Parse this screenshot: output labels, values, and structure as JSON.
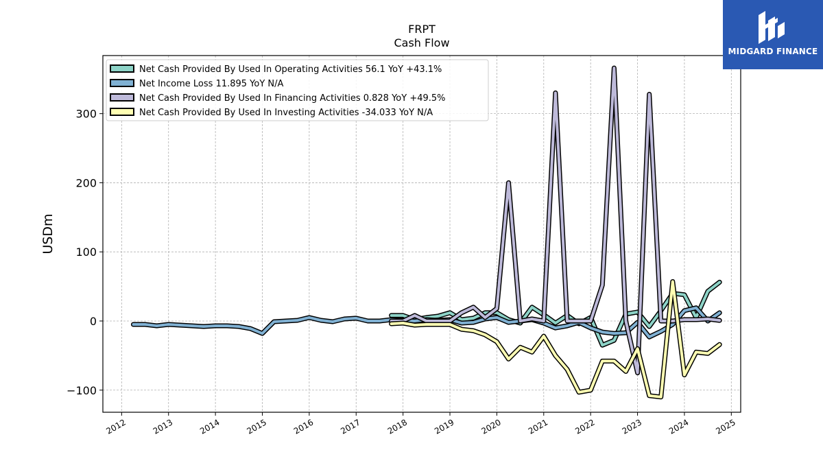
{
  "chart_data": {
    "type": "line",
    "title": "FRPT",
    "subtitle": "Cash Flow",
    "xlabel": "",
    "ylabel": "USDm",
    "xlim": [
      2011.6,
      2025.2
    ],
    "ylim": [
      -132,
      384
    ],
    "x_ticks": [
      "2012",
      "2013",
      "2014",
      "2015",
      "2016",
      "2017",
      "2018",
      "2019",
      "2020",
      "2021",
      "2022",
      "2023",
      "2024",
      "2025"
    ],
    "y_ticks": [
      -100,
      0,
      100,
      200,
      300
    ],
    "y_tick_labels": [
      "−100",
      "0",
      "100",
      "200",
      "300"
    ],
    "grid": true,
    "legend_position": "top-left",
    "series": [
      {
        "name": "Net Cash Provided By Used In Operating Activities",
        "legend_label": "Net Cash Provided By Used In Operating Activities  56.1 YoY +43.1%",
        "color": "#8dd3c7",
        "points": [
          [
            2017.75,
            8
          ],
          [
            2018.0,
            8
          ],
          [
            2018.25,
            2
          ],
          [
            2018.5,
            5
          ],
          [
            2018.75,
            7
          ],
          [
            2019.0,
            12
          ],
          [
            2019.25,
            2
          ],
          [
            2019.5,
            4
          ],
          [
            2019.75,
            12
          ],
          [
            2020.0,
            12
          ],
          [
            2020.25,
            2
          ],
          [
            2020.5,
            -3
          ],
          [
            2020.75,
            20
          ],
          [
            2021.0,
            9
          ],
          [
            2021.25,
            -3
          ],
          [
            2021.5,
            8
          ],
          [
            2021.75,
            -4
          ],
          [
            2022.0,
            5
          ],
          [
            2022.25,
            -35
          ],
          [
            2022.5,
            -28
          ],
          [
            2022.75,
            10
          ],
          [
            2023.0,
            13
          ],
          [
            2023.25,
            -8
          ],
          [
            2023.5,
            15
          ],
          [
            2023.75,
            40
          ],
          [
            2024.0,
            38
          ],
          [
            2024.25,
            5
          ],
          [
            2024.5,
            43
          ],
          [
            2024.75,
            56.1
          ]
        ]
      },
      {
        "name": "Net Income Loss",
        "legend_label": "Net Income Loss  11.895 YoY N/A",
        "color": "#80b1d3",
        "points": [
          [
            2012.25,
            -5
          ],
          [
            2012.5,
            -5
          ],
          [
            2012.75,
            -7
          ],
          [
            2013.0,
            -5
          ],
          [
            2013.25,
            -6
          ],
          [
            2013.5,
            -7
          ],
          [
            2013.75,
            -8
          ],
          [
            2014.0,
            -7
          ],
          [
            2014.25,
            -7
          ],
          [
            2014.5,
            -8
          ],
          [
            2014.75,
            -11
          ],
          [
            2015.0,
            -18
          ],
          [
            2015.25,
            -1
          ],
          [
            2015.5,
            0
          ],
          [
            2015.75,
            1
          ],
          [
            2016.0,
            5
          ],
          [
            2016.25,
            1
          ],
          [
            2016.5,
            -1
          ],
          [
            2016.75,
            3
          ],
          [
            2017.0,
            4
          ],
          [
            2017.25,
            0
          ],
          [
            2017.5,
            0
          ],
          [
            2017.75,
            2
          ],
          [
            2018.0,
            1
          ],
          [
            2018.25,
            0
          ],
          [
            2018.5,
            2
          ],
          [
            2018.75,
            1
          ],
          [
            2019.0,
            2
          ],
          [
            2019.25,
            -3
          ],
          [
            2019.5,
            -2
          ],
          [
            2019.75,
            3
          ],
          [
            2020.0,
            5
          ],
          [
            2020.25,
            -2
          ],
          [
            2020.5,
            0
          ],
          [
            2020.75,
            2
          ],
          [
            2021.0,
            -3
          ],
          [
            2021.25,
            -10
          ],
          [
            2021.5,
            -7
          ],
          [
            2021.75,
            -2
          ],
          [
            2022.0,
            -10
          ],
          [
            2022.25,
            -16
          ],
          [
            2022.5,
            -18
          ],
          [
            2022.75,
            -17
          ],
          [
            2023.0,
            -2
          ],
          [
            2023.25,
            -23
          ],
          [
            2023.5,
            -15
          ],
          [
            2023.75,
            -5
          ],
          [
            2024.0,
            15
          ],
          [
            2024.25,
            19
          ],
          [
            2024.5,
            0
          ],
          [
            2024.75,
            11.895
          ]
        ]
      },
      {
        "name": "Net Cash Provided By Used In Financing Activities",
        "legend_label": "Net Cash Provided By Used In Financing Activities  0.828 YoY +49.5%",
        "color": "#bebada",
        "points": [
          [
            2017.75,
            0
          ],
          [
            2018.0,
            0
          ],
          [
            2018.25,
            8
          ],
          [
            2018.5,
            0
          ],
          [
            2018.75,
            0
          ],
          [
            2019.0,
            0
          ],
          [
            2019.25,
            12
          ],
          [
            2019.5,
            20
          ],
          [
            2019.75,
            5
          ],
          [
            2020.0,
            18
          ],
          [
            2020.25,
            200
          ],
          [
            2020.5,
            0
          ],
          [
            2020.75,
            3
          ],
          [
            2021.0,
            0
          ],
          [
            2021.25,
            330
          ],
          [
            2021.5,
            0
          ],
          [
            2021.75,
            0
          ],
          [
            2022.0,
            0
          ],
          [
            2022.25,
            52
          ],
          [
            2022.5,
            366
          ],
          [
            2022.75,
            0
          ],
          [
            2023.0,
            -75
          ],
          [
            2023.25,
            328
          ],
          [
            2023.5,
            0
          ],
          [
            2023.75,
            0
          ],
          [
            2024.0,
            2
          ],
          [
            2024.25,
            2
          ],
          [
            2024.5,
            3
          ],
          [
            2024.75,
            0.828
          ]
        ]
      },
      {
        "name": "Net Cash Provided By Used In Investing Activities",
        "legend_label": "Net Cash Provided By Used In Investing Activities  -34.033 YoY N/A",
        "color": "#ffffb3",
        "points": [
          [
            2017.75,
            -4
          ],
          [
            2018.0,
            -3
          ],
          [
            2018.25,
            -6
          ],
          [
            2018.5,
            -5
          ],
          [
            2018.75,
            -5
          ],
          [
            2019.0,
            -5
          ],
          [
            2019.25,
            -12
          ],
          [
            2019.5,
            -14
          ],
          [
            2019.75,
            -20
          ],
          [
            2020.0,
            -30
          ],
          [
            2020.25,
            -55
          ],
          [
            2020.5,
            -38
          ],
          [
            2020.75,
            -45
          ],
          [
            2021.0,
            -22
          ],
          [
            2021.25,
            -50
          ],
          [
            2021.5,
            -70
          ],
          [
            2021.75,
            -103
          ],
          [
            2022.0,
            -100
          ],
          [
            2022.25,
            -58
          ],
          [
            2022.5,
            -58
          ],
          [
            2022.75,
            -73
          ],
          [
            2023.0,
            -40
          ],
          [
            2023.25,
            -108
          ],
          [
            2023.5,
            -110
          ],
          [
            2023.75,
            57
          ],
          [
            2024.0,
            -78
          ],
          [
            2024.25,
            -45
          ],
          [
            2024.5,
            -47
          ],
          [
            2024.75,
            -34.033
          ]
        ]
      }
    ]
  },
  "logo": {
    "brand": "MIDGARD FINANCE",
    "icon": "midgard-logo-icon"
  }
}
